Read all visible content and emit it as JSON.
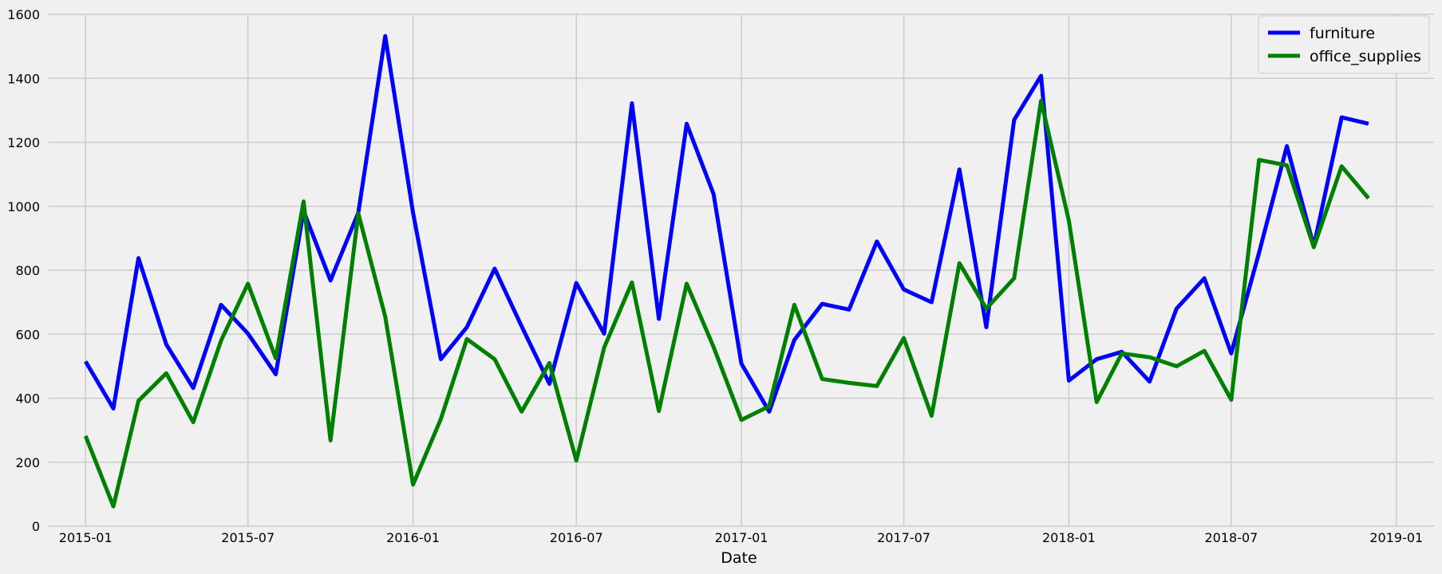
{
  "chart_data": {
    "type": "line",
    "title": "",
    "xlabel": "Date",
    "ylabel": "",
    "x": [
      "2015-01",
      "2015-02",
      "2015-03",
      "2015-04",
      "2015-05",
      "2015-06",
      "2015-07",
      "2015-08",
      "2015-09",
      "2015-10",
      "2015-11",
      "2015-12",
      "2016-01",
      "2016-02",
      "2016-03",
      "2016-04",
      "2016-05",
      "2016-06",
      "2016-07",
      "2016-08",
      "2016-09",
      "2016-10",
      "2016-11",
      "2016-12",
      "2017-01",
      "2017-02",
      "2017-03",
      "2017-04",
      "2017-05",
      "2017-06",
      "2017-07",
      "2017-08",
      "2017-09",
      "2017-10",
      "2017-11",
      "2017-12",
      "2018-01",
      "2018-02",
      "2018-03",
      "2018-04",
      "2018-05",
      "2018-06",
      "2018-07",
      "2018-08",
      "2018-09",
      "2018-10",
      "2018-11",
      "2018-12"
    ],
    "series": [
      {
        "name": "furniture",
        "color": "#0000ff",
        "values": [
          515,
          368,
          838,
          568,
          432,
          692,
          602,
          475,
          985,
          768,
          980,
          1532,
          980,
          522,
          622,
          805,
          625,
          445,
          760,
          602,
          1322,
          648,
          1258,
          1038,
          508,
          358,
          582,
          695,
          677,
          890,
          740,
          700,
          1115,
          622,
          1270,
          1408,
          455,
          522,
          545,
          452,
          680,
          775,
          540,
          855,
          1188,
          875,
          1278,
          1258
        ]
      },
      {
        "name": "office_supplies",
        "color": "#008000",
        "values": [
          282,
          62,
          392,
          478,
          325,
          580,
          758,
          525,
          1015,
          268,
          978,
          655,
          130,
          335,
          585,
          522,
          358,
          510,
          205,
          558,
          762,
          360,
          758,
          560,
          332,
          375,
          692,
          460,
          448,
          438,
          588,
          345,
          822,
          680,
          775,
          1330,
          955,
          388,
          540,
          528,
          500,
          548,
          395,
          1145,
          1128,
          872,
          1125,
          1025
        ]
      }
    ],
    "x_ticks": [
      "2015-01",
      "2015-07",
      "2016-01",
      "2016-07",
      "2017-01",
      "2017-07",
      "2018-01",
      "2018-07",
      "2019-01"
    ],
    "y_ticks": [
      "0",
      "200",
      "400",
      "600",
      "800",
      "1000",
      "1200",
      "1400",
      "1600"
    ],
    "xlim": [
      "2014-11-20",
      "2019-02-12"
    ],
    "ylim": [
      0,
      1600
    ],
    "grid": true,
    "legend_position": "top-right"
  }
}
